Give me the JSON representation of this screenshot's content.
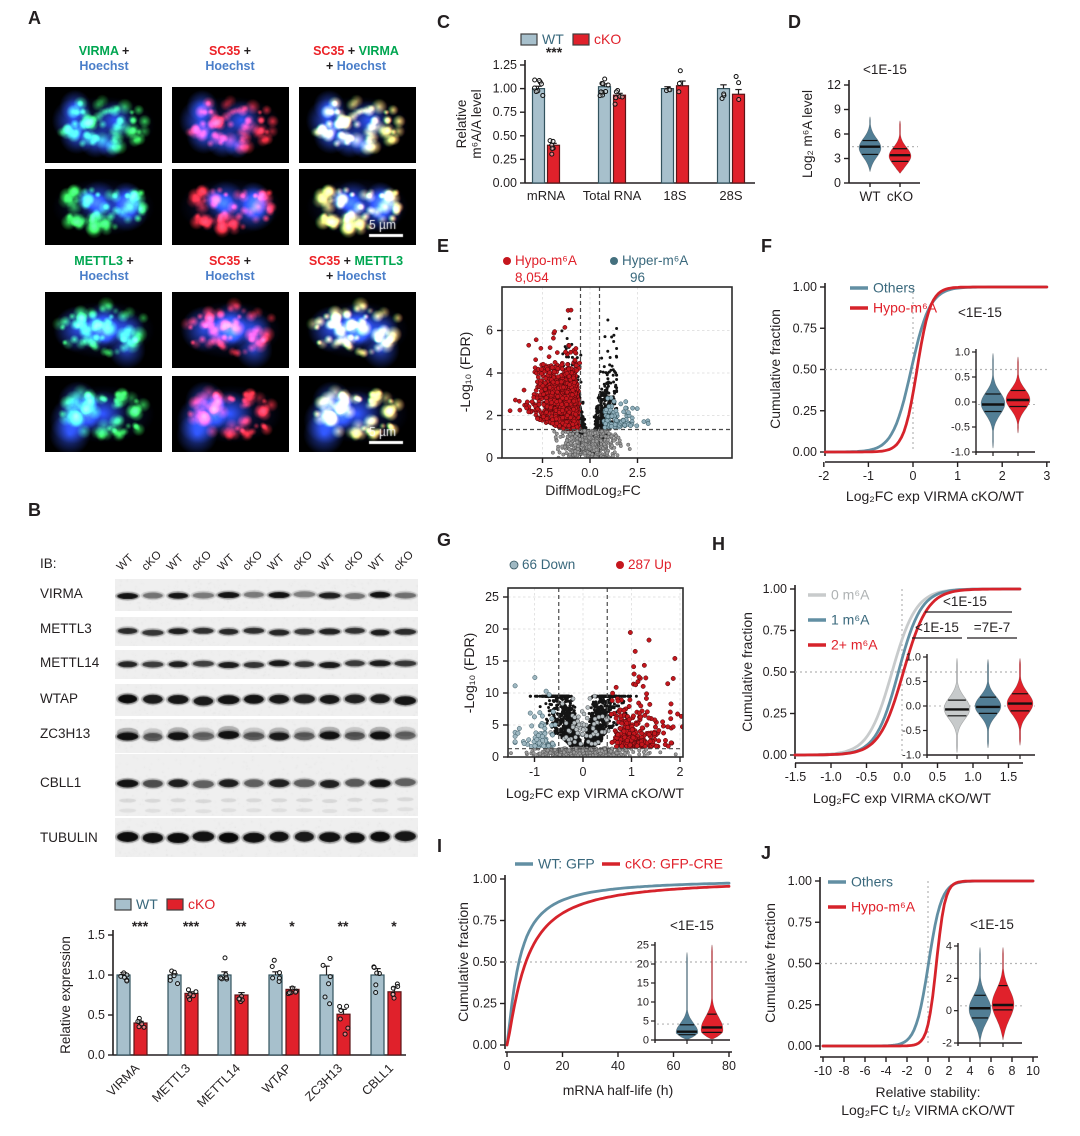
{
  "panels": {
    "A": {
      "label": "A"
    },
    "B": {
      "label": "B"
    },
    "C": {
      "label": "C"
    },
    "D": {
      "label": "D"
    },
    "E": {
      "label": "E"
    },
    "F": {
      "label": "F"
    },
    "G": {
      "label": "G"
    },
    "H": {
      "label": "H"
    },
    "I": {
      "label": "I"
    },
    "J": {
      "label": "J"
    }
  },
  "colors": {
    "wt_fill": "#A7C0CC",
    "wt_edge": "#33535E",
    "cko_fill": "#E0212B",
    "cko_edge": "#5A1518",
    "teal_text": "#39687C",
    "red_text": "#E0212B",
    "curve_blue": "#628FA3",
    "curve_red": "#D6232B",
    "curve_gray": "#C8CBCC",
    "violin_blue": "#527E95",
    "violin_red": "#E0212B",
    "violin_gray": "#C7CACB",
    "hypo_dot": "#C5161D",
    "hyper_dot": "#8FAEBB",
    "down_dot": "#9FB8C2",
    "hyper_legend": "#44707E",
    "green_label": "#00A651",
    "red_label": "#EC2227",
    "blue_label": "#4A7EC9",
    "gray_legend": "#AEB2B3",
    "axis": "#231F20",
    "dash": "#4A4A4A",
    "dot_ref": "#B5B5B5"
  },
  "panelA": {
    "scale_bar": "5 µm",
    "blocks": [
      {
        "columns": [
          {
            "line1": [
              [
                "VIRMA",
                "green"
              ],
              [
                " +",
                "black"
              ]
            ],
            "line2": [
              [
                "Hoechst",
                "blue"
              ]
            ]
          },
          {
            "line1": [
              [
                "SC35",
                "red"
              ],
              [
                " +",
                "black"
              ]
            ],
            "line2": [
              [
                "Hoechst",
                "blue"
              ]
            ]
          },
          {
            "line1": [
              [
                "SC35",
                "red"
              ],
              [
                " + ",
                "black"
              ],
              [
                "VIRMA",
                "green"
              ]
            ],
            "line2": [
              [
                "+ ",
                "black"
              ],
              [
                "Hoechst",
                "blue"
              ]
            ]
          }
        ]
      },
      {
        "columns": [
          {
            "line1": [
              [
                "METTL3",
                "green"
              ],
              [
                " +",
                "black"
              ]
            ],
            "line2": [
              [
                "Hoechst",
                "blue"
              ]
            ]
          },
          {
            "line1": [
              [
                "SC35",
                "red"
              ],
              [
                " +",
                "black"
              ]
            ],
            "line2": [
              [
                "Hoechst",
                "blue"
              ]
            ]
          },
          {
            "line1": [
              [
                "SC35",
                "red"
              ],
              [
                " + ",
                "black"
              ],
              [
                "METTL3",
                "green"
              ]
            ],
            "line2": [
              [
                "+ ",
                "black"
              ],
              [
                "Hoechst",
                "blue"
              ]
            ]
          }
        ]
      }
    ]
  },
  "panelB": {
    "ib_label": "IB:",
    "lanes": [
      "WT",
      "cKO",
      "WT",
      "cKO",
      "WT",
      "cKO",
      "WT",
      "cKO",
      "WT",
      "cKO",
      "WT",
      "cKO"
    ],
    "antibodies": [
      "VIRMA",
      "METTL3",
      "METTL14",
      "WTAP",
      "ZC3H13",
      "CBLL1",
      "TUBULIN"
    ]
  },
  "chart_data": [
    {
      "id": "B_expression",
      "type": "bar",
      "panel": "B",
      "legend": [
        "WT",
        "cKO"
      ],
      "categories": [
        "VIRMA",
        "METTL3",
        "METTL14",
        "WTAP",
        "ZC3H13",
        "CBLL1"
      ],
      "series": [
        {
          "name": "WT",
          "values": [
            1.0,
            1.0,
            1.0,
            1.0,
            1.0,
            1.0
          ],
          "sem": [
            0.03,
            0.015,
            0.04,
            0.04,
            0.11,
            0.08
          ],
          "n": [
            6,
            6,
            6,
            6,
            6,
            6
          ]
        },
        {
          "name": "cKO",
          "values": [
            0.4,
            0.77,
            0.75,
            0.82,
            0.51,
            0.79
          ],
          "sem": [
            0.02,
            0.02,
            0.03,
            0.03,
            0.06,
            0.06
          ],
          "n": [
            6,
            6,
            6,
            6,
            6,
            6
          ]
        }
      ],
      "significance": [
        "***",
        "***",
        "**",
        "*",
        "**",
        "*"
      ],
      "ylabel": "Relative expression",
      "yticks": [
        "0.0",
        "0.5",
        "1.0",
        "1.5"
      ],
      "ylim": [
        0,
        1.5
      ]
    },
    {
      "id": "C_m6a",
      "type": "bar",
      "panel": "C",
      "legend": [
        "WT",
        "cKO"
      ],
      "categories": [
        "mRNA",
        "Total RNA",
        "18S",
        "28S"
      ],
      "series": [
        {
          "name": "WT",
          "values": [
            1.0,
            1.02,
            1.0,
            1.0
          ],
          "sem": [
            0.025,
            0.03,
            0.02,
            0.04
          ],
          "n": [
            8,
            9,
            3,
            3
          ]
        },
        {
          "name": "cKO",
          "values": [
            0.4,
            0.93,
            1.03,
            0.94
          ],
          "sem": [
            0.02,
            0.02,
            0.05,
            0.05
          ],
          "n": [
            6,
            6,
            3,
            3
          ]
        }
      ],
      "significance": [
        "***",
        "",
        "",
        ""
      ],
      "ylabel_lines": [
        "Relative",
        "m⁶A/A level"
      ],
      "yticks": [
        "0.00",
        "0.25",
        "0.50",
        "0.75",
        "1.00",
        "1.25"
      ],
      "ylim": [
        0,
        1.25
      ]
    },
    {
      "id": "D_violin",
      "type": "violin",
      "panel": "D",
      "pvalue": "<1E-15",
      "ylabel": "Log₂ m⁶A level",
      "yticks": [
        "0",
        "3",
        "6",
        "9",
        "12"
      ],
      "ylim": [
        0,
        12
      ],
      "categories": [
        "WT",
        "cKO"
      ],
      "refline": 4.45,
      "violins": [
        {
          "name": "WT",
          "min": 1.4,
          "q1": 3.5,
          "median": 4.45,
          "q3": 5.2,
          "max": 8.1,
          "mode": 4.3,
          "sigma": 1.15
        },
        {
          "name": "cKO",
          "min": 1.2,
          "q1": 2.65,
          "median": 3.4,
          "q3": 4.2,
          "max": 7.6,
          "mode": 3.3,
          "sigma": 1.05
        }
      ]
    },
    {
      "id": "E_volcano",
      "type": "scatter",
      "panel": "E",
      "legend": [
        {
          "label": "Hypo-m⁶A",
          "count": "8,054"
        },
        {
          "label": "Hyper-m⁶A",
          "count": "96"
        }
      ],
      "counts": {
        "hypo": 8054,
        "hyper": 96
      },
      "xlabel": "DiffModLog₂FC",
      "ylabel": "-Log₁₀ (FDR)",
      "xticks": [
        "-2.5",
        "0.0",
        "2.5"
      ],
      "yticks": [
        "0",
        "2",
        "4",
        "6"
      ],
      "xlim": [
        -4.6,
        7.5
      ],
      "ylim": [
        0,
        8.1
      ],
      "fc_threshold": 0.5,
      "fdr_threshold": 1.34
    },
    {
      "id": "F_cdf",
      "type": "line",
      "panel": "F",
      "legend": [
        {
          "label": "Others"
        },
        {
          "label": "Hypo-m⁶A"
        }
      ],
      "xlabel": "Log₂FC exp VIRMA cKO/WT",
      "ylabel": "Cumulative fraction",
      "xticks": [
        "-2",
        "-1",
        "0",
        "1",
        "2",
        "3"
      ],
      "yticks": [
        "1.00",
        "0.75",
        "0.50",
        "0.25",
        "0.00"
      ],
      "series": [
        {
          "name": "Others",
          "median": -0.04,
          "scale": 0.21
        },
        {
          "name": "Hypo-m⁶A",
          "median": 0.09,
          "scale": 0.15
        }
      ],
      "inset": {
        "pvalue": "<1E-15",
        "yticks": [
          "1.0",
          "0.5",
          "0.0",
          "-0.5",
          "-1.0"
        ],
        "ylim": [
          -1,
          1
        ],
        "refline": -0.05,
        "violins": [
          {
            "name": "Others",
            "min": -0.92,
            "q1": -0.19,
            "median": -0.05,
            "q3": 0.16,
            "max": 0.97,
            "mode": -0.03,
            "sigma": 0.22
          },
          {
            "name": "Hypo-m⁶A",
            "min": -0.62,
            "q1": -0.09,
            "median": 0.04,
            "q3": 0.23,
            "max": 0.9,
            "mode": 0.05,
            "sigma": 0.2
          }
        ]
      }
    },
    {
      "id": "G_volcano",
      "type": "scatter",
      "panel": "G",
      "legend": [
        {
          "label": "66 Down"
        },
        {
          "label": "287 Up"
        }
      ],
      "counts": {
        "down": 66,
        "up": 287
      },
      "xlabel": "Log₂FC exp VIRMA cKO/WT",
      "ylabel": "-Log₁₀ (FDR)",
      "xticks": [
        "-1",
        "0",
        "1",
        "2"
      ],
      "yticks": [
        "0",
        "5",
        "10",
        "15",
        "20",
        "25"
      ],
      "xlim": [
        -1.55,
        2.06
      ],
      "ylim": [
        0,
        26.5
      ],
      "fc_threshold": 0.5,
      "fdr_threshold": 1.3
    },
    {
      "id": "H_cdf",
      "type": "line",
      "panel": "H",
      "legend": [
        {
          "label": "0 m⁶A"
        },
        {
          "label": "1 m⁶A"
        },
        {
          "label": "2+ m⁶A"
        }
      ],
      "pvalues": {
        "top": "<1E-15",
        "left": "<1E-15",
        "right": "=7E-7"
      },
      "xlabel": "Log₂FC exp VIRMA cKO/WT",
      "ylabel": "Cumulative fraction",
      "xticks": [
        "-1.5",
        "-1.0",
        "-0.5",
        "0.0",
        "0.5",
        "1.0",
        "1.5"
      ],
      "yticks": [
        "1.00",
        "0.75",
        "0.50",
        "0.25",
        "0.00"
      ],
      "series": [
        {
          "name": "0 m⁶A",
          "median": -0.14,
          "scale": 0.17
        },
        {
          "name": "1 m⁶A",
          "median": -0.05,
          "scale": 0.16
        },
        {
          "name": "2+ m⁶A",
          "median": 0.02,
          "scale": 0.17
        }
      ],
      "inset": {
        "yticks": [
          "1.0",
          "0.5",
          "0.0",
          "-0.5",
          "-1.0"
        ],
        "ylim": [
          -1,
          1
        ],
        "refline": 0,
        "violins": [
          {
            "name": "0 m⁶A",
            "min": -0.95,
            "q1": -0.2,
            "median": -0.07,
            "q3": 0.12,
            "max": 0.97,
            "mode": -0.05,
            "sigma": 0.22
          },
          {
            "name": "1 m⁶A",
            "min": -0.85,
            "q1": -0.15,
            "median": -0.02,
            "q3": 0.18,
            "max": 0.95,
            "mode": 0,
            "sigma": 0.2
          },
          {
            "name": "2+ m⁶A",
            "min": -0.8,
            "q1": -0.1,
            "median": 0.05,
            "q3": 0.25,
            "max": 0.97,
            "mode": 0.05,
            "sigma": 0.22
          }
        ]
      }
    },
    {
      "id": "I_cdf",
      "type": "line",
      "panel": "I",
      "legend": [
        {
          "label": "WT: GFP"
        },
        {
          "label": "cKO: GFP-CRE"
        }
      ],
      "xlabel": "mRNA half-life (h)",
      "ylabel": "Cumulative fraction",
      "xticks": [
        "0",
        "20",
        "40",
        "60",
        "80"
      ],
      "yticks": [
        "1.00",
        "0.75",
        "0.50",
        "0.25",
        "0.00"
      ],
      "series": [
        {
          "name": "WT: GFP",
          "half_life_at_50pct": 4.3,
          "hill": 1.25
        },
        {
          "name": "cKO: GFP-CRE",
          "half_life_at_50pct": 6.8,
          "hill": 1.25
        }
      ],
      "inset": {
        "pvalue": "<1E-15",
        "yticks": [
          "25",
          "20",
          "15",
          "10",
          "5",
          "0"
        ],
        "ylim": [
          0,
          25
        ],
        "refline": 4.2,
        "violins": [
          {
            "name": "WT: GFP",
            "min": 0.2,
            "q1": 1.4,
            "median": 2.2,
            "q3": 4.0,
            "max": 23,
            "mode": 2,
            "sigma": 2.4
          },
          {
            "name": "cKO: GFP-CRE",
            "min": 0.3,
            "q1": 2.0,
            "median": 3.3,
            "q3": 6.8,
            "max": 25,
            "mode": 2.8,
            "sigma": 3.2
          }
        ]
      }
    },
    {
      "id": "J_cdf",
      "type": "line",
      "panel": "J",
      "legend": [
        {
          "label": "Others"
        },
        {
          "label": "Hypo-m⁶A"
        }
      ],
      "pvalue": "<1E-15",
      "xlabel_lines": [
        "Relative stability:",
        "Log₂FC t₁/₂ VIRMA cKO/WT"
      ],
      "ylabel": "Cumulative fraction",
      "xticks": [
        "-10",
        "-8",
        "-6",
        "-4",
        "-2",
        "0",
        "2",
        "4",
        "6",
        "8",
        "10"
      ],
      "yticks": [
        "1.00",
        "0.75",
        "0.50",
        "0.25",
        "0.00"
      ],
      "series": [
        {
          "name": "Others",
          "median": 0.05,
          "scale": 0.62
        },
        {
          "name": "Hypo-m⁶A",
          "median": 0.8,
          "scale": 0.42
        }
      ],
      "inset": {
        "pvalue": "<1E-15",
        "yticks": [
          "4",
          "2",
          "0",
          "-2"
        ],
        "ylim": [
          -2,
          4
        ],
        "refline": 0.3,
        "violins": [
          {
            "name": "Others",
            "min": -2.0,
            "q1": -0.45,
            "median": 0.15,
            "q3": 0.95,
            "max": 3.9,
            "mode": 0.1,
            "sigma": 0.8
          },
          {
            "name": "Hypo-m⁶A",
            "min": -1.8,
            "q1": 0.05,
            "median": 0.35,
            "q3": 1.55,
            "max": 3.9,
            "mode": 0.4,
            "sigma": 0.9
          }
        ]
      }
    }
  ]
}
